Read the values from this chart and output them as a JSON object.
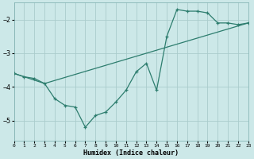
{
  "background_color": "#cce8e8",
  "grid_color": "#aacccc",
  "line_color": "#2d7d6e",
  "xlabel": "Humidex (Indice chaleur)",
  "xlim": [
    0,
    23
  ],
  "ylim": [
    -5.6,
    -1.5
  ],
  "yticks": [
    -5,
    -4,
    -3,
    -2
  ],
  "xticks": [
    0,
    1,
    2,
    3,
    4,
    5,
    6,
    7,
    8,
    9,
    10,
    11,
    12,
    13,
    14,
    15,
    16,
    17,
    18,
    19,
    20,
    21,
    22,
    23
  ],
  "line1_x": [
    0,
    3,
    23
  ],
  "line1_y": [
    -3.6,
    -3.9,
    -2.1
  ],
  "line2_x": [
    0,
    1,
    2,
    3,
    4,
    5,
    6,
    7,
    8,
    9,
    10,
    11,
    12,
    13,
    14,
    15,
    16,
    17,
    18,
    19,
    20,
    21,
    22,
    23
  ],
  "line2_y": [
    -3.6,
    -3.7,
    -3.75,
    -3.9,
    -4.35,
    -4.55,
    -4.6,
    -5.2,
    -4.85,
    -4.75,
    -4.45,
    -4.1,
    -3.55,
    -3.3,
    -4.1,
    -2.5,
    -1.7,
    -1.75,
    -1.75,
    -1.8,
    -2.1,
    -2.1,
    -2.15,
    -2.1
  ]
}
